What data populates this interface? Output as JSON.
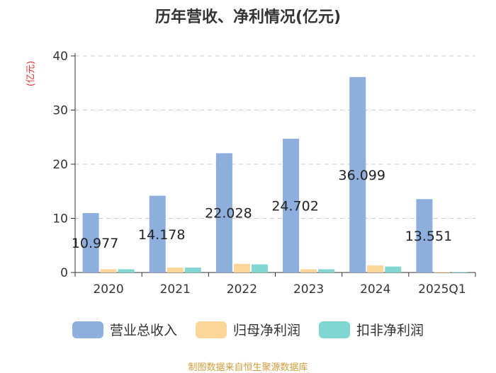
{
  "chart_data": {
    "type": "bar",
    "title": "历年营收、净利情况(亿元)",
    "ylabel": "(亿元)",
    "xlabel": "",
    "ylim": [
      0,
      40
    ],
    "yticks": [
      0,
      10,
      20,
      30,
      40
    ],
    "categories": [
      "2020",
      "2021",
      "2022",
      "2023",
      "2024",
      "2025Q1"
    ],
    "series": [
      {
        "name": "营业总收入",
        "color": "#8eaedd",
        "values": [
          10.977,
          14.178,
          22.028,
          24.702,
          36.099,
          13.551
        ],
        "labels": [
          "10.977",
          "14.178",
          "22.028",
          "24.702",
          "36.099",
          "13.551"
        ]
      },
      {
        "name": "归母净利润",
        "color": "#fcd699",
        "values": [
          0.6,
          0.9,
          1.6,
          0.6,
          1.3,
          0.1
        ]
      },
      {
        "name": "扣非净利润",
        "color": "#80d6d3",
        "values": [
          0.6,
          0.9,
          1.5,
          0.6,
          1.1,
          0.1
        ]
      }
    ],
    "grid": true,
    "legend_position": "bottom"
  },
  "unit_color": "#e03030",
  "source": {
    "text": "制图数据来自恒生聚源数据库",
    "color": "#d19b3c"
  }
}
